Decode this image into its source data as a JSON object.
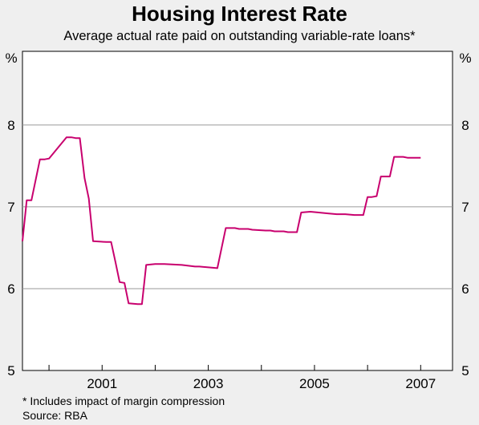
{
  "chart_data": {
    "type": "line",
    "title": "Housing Interest Rate",
    "subtitle": "Average actual rate paid on outstanding variable-rate loans*",
    "y_unit_left": "%",
    "y_unit_right": "%",
    "ylim": [
      5,
      8.9
    ],
    "yticks": [
      5,
      6,
      7,
      8
    ],
    "xlim": [
      1999.5,
      2007.6
    ],
    "xticks": [
      2001,
      2003,
      2005,
      2007
    ],
    "grid": true,
    "line_color": "#c8006e",
    "series": [
      {
        "x": [
          1999.5,
          1999.58,
          1999.6,
          1999.67,
          1999.83,
          1999.92,
          2000.0,
          2000.33,
          2000.42,
          2000.5,
          2000.58,
          2000.67,
          2000.75,
          2000.83,
          2001.08,
          2001.17,
          2001.25,
          2001.33,
          2001.42,
          2001.5,
          2001.67,
          2001.75,
          2001.83,
          2002.0,
          2002.08,
          2002.17,
          2002.5,
          2002.75,
          2002.83,
          2003.17,
          2003.33,
          2003.42,
          2003.5,
          2003.58,
          2003.75,
          2003.83,
          2004.08,
          2004.17,
          2004.25,
          2004.42,
          2004.5,
          2004.67,
          2004.75,
          2004.92,
          2005.08,
          2005.25,
          2005.42,
          2005.58,
          2005.75,
          2005.92,
          2006.0,
          2006.08,
          2006.17,
          2006.25,
          2006.33,
          2006.42,
          2006.5,
          2006.58,
          2006.67,
          2006.75,
          2006.83,
          2006.92,
          2007.0
        ],
        "y": [
          6.58,
          7.08,
          7.08,
          7.08,
          7.58,
          7.58,
          7.59,
          7.85,
          7.85,
          7.84,
          7.84,
          7.35,
          7.1,
          6.58,
          6.57,
          6.57,
          6.33,
          6.08,
          6.07,
          5.82,
          5.81,
          5.81,
          6.29,
          6.3,
          6.3,
          6.3,
          6.29,
          6.27,
          6.27,
          6.25,
          6.74,
          6.74,
          6.74,
          6.73,
          6.73,
          6.72,
          6.71,
          6.71,
          6.7,
          6.7,
          6.69,
          6.69,
          6.93,
          6.94,
          6.93,
          6.92,
          6.91,
          6.91,
          6.9,
          6.9,
          7.12,
          7.12,
          7.13,
          7.37,
          7.37,
          7.37,
          7.61,
          7.61,
          7.61,
          7.6,
          7.6,
          7.6,
          7.6
        ]
      }
    ],
    "footnote": "*    Includes impact of margin compression",
    "source": "Source: RBA"
  }
}
